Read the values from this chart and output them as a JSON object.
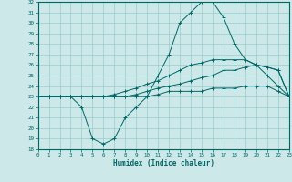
{
  "xlabel": "Humidex (Indice chaleur)",
  "x": [
    0,
    1,
    2,
    3,
    4,
    5,
    6,
    7,
    8,
    9,
    10,
    11,
    12,
    13,
    14,
    15,
    16,
    17,
    18,
    19,
    20,
    21,
    22,
    23
  ],
  "line_max": [
    23,
    23,
    23,
    23,
    22,
    19,
    18.5,
    19,
    21,
    22,
    23,
    25,
    27,
    30,
    31,
    32,
    32,
    30.5,
    28,
    26.5,
    26,
    25,
    24,
    23
  ],
  "line_avg": [
    23,
    23,
    23,
    23,
    23,
    23,
    23,
    23.2,
    23.5,
    23.8,
    24.2,
    24.5,
    25,
    25.5,
    26,
    26.2,
    26.5,
    26.5,
    26.5,
    26.5,
    26,
    25.8,
    25.5,
    23
  ],
  "line_min": [
    23,
    23,
    23,
    23,
    23,
    23,
    23,
    23,
    23,
    23.2,
    23.5,
    23.8,
    24,
    24.2,
    24.5,
    24.8,
    25,
    25.5,
    25.5,
    25.8,
    26,
    25.8,
    25.5,
    23
  ],
  "line_flat": [
    23,
    23,
    23,
    23,
    23,
    23,
    23,
    23,
    23,
    23,
    23,
    23.2,
    23.5,
    23.5,
    23.5,
    23.5,
    23.8,
    23.8,
    23.8,
    24,
    24,
    24,
    23.5,
    23
  ],
  "bg_color": "#cce8e8",
  "line_color": "#006666",
  "grid_color": "#99cccc",
  "ylim": [
    18,
    32
  ],
  "xlim": [
    0,
    23
  ]
}
